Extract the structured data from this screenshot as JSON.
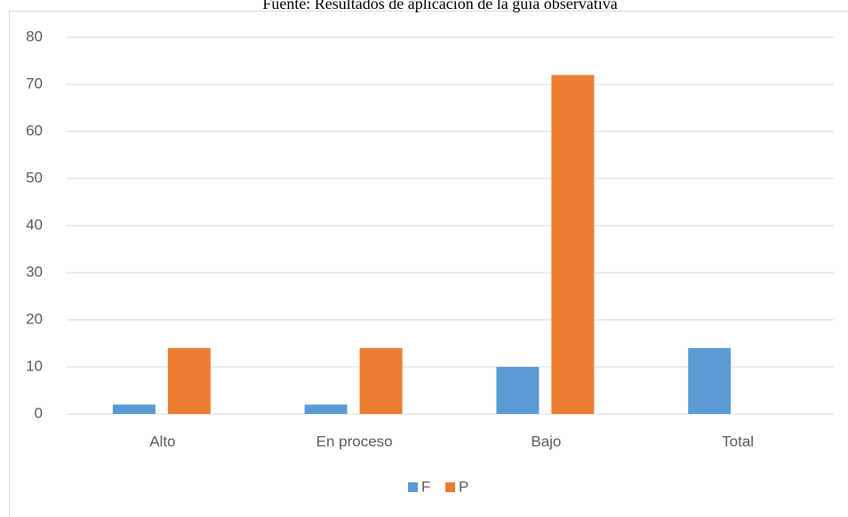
{
  "chart_data": {
    "type": "bar",
    "title": "Fuente: Resultados de aplicación de la guía observativa",
    "categories": [
      "Alto",
      "En proceso",
      "Bajo",
      "Total"
    ],
    "series": [
      {
        "name": "F",
        "color": "#5b9bd5",
        "values": [
          2,
          2,
          10,
          14
        ]
      },
      {
        "name": "P",
        "color": "#ed7d31",
        "values": [
          14,
          14,
          72,
          null
        ]
      }
    ],
    "ylim": [
      0,
      80
    ],
    "yticks": [
      0,
      10,
      20,
      30,
      40,
      50,
      60,
      70,
      80
    ],
    "grid": true,
    "legend": "bottom"
  }
}
